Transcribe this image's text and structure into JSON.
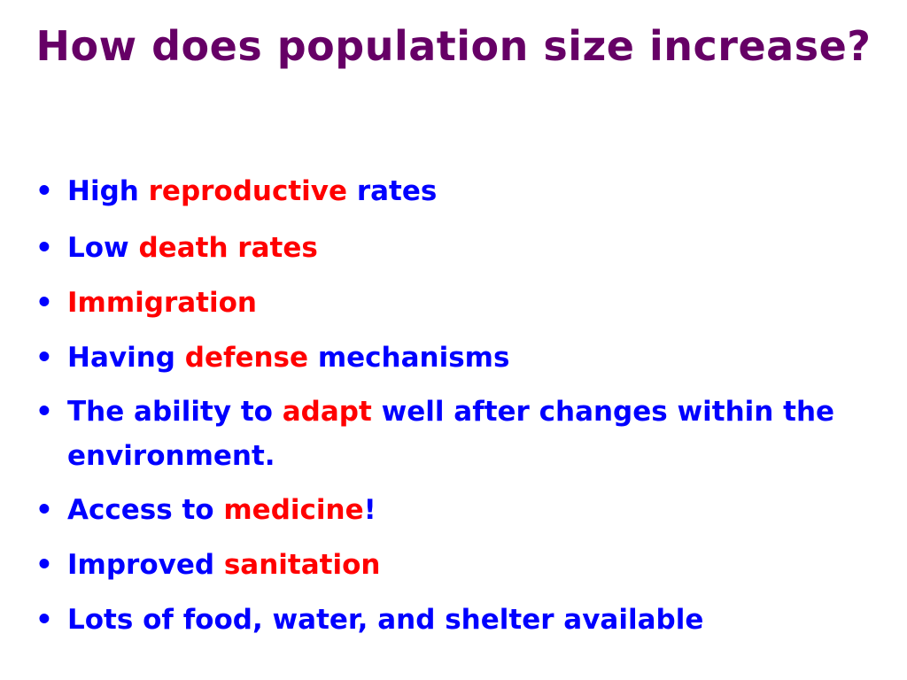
{
  "title": "How does population size increase?",
  "bullet_glyph": "•",
  "colors": {
    "title": "#660066",
    "text": "#0000ff",
    "highlight": "#ff0000"
  },
  "bullets": [
    {
      "pre": "High ",
      "hl": "reproductive",
      "post": " rates"
    },
    {
      "pre": "Low ",
      "hl": "death rates",
      "post": ""
    },
    {
      "pre": "",
      "hl": "Immigration",
      "post": ""
    },
    {
      "pre": "Having ",
      "hl": "defense",
      "post": " mechanisms"
    },
    {
      "pre": "The ability to ",
      "hl": "adapt",
      "post": " well after changes within the environment."
    },
    {
      "pre": "Access to ",
      "hl": "medicine",
      "post": "!"
    },
    {
      "pre": "Improved ",
      "hl": "sanitation",
      "post": ""
    },
    {
      "pre": "Lots of food, water, and shelter available",
      "hl": "",
      "post": ""
    }
  ]
}
